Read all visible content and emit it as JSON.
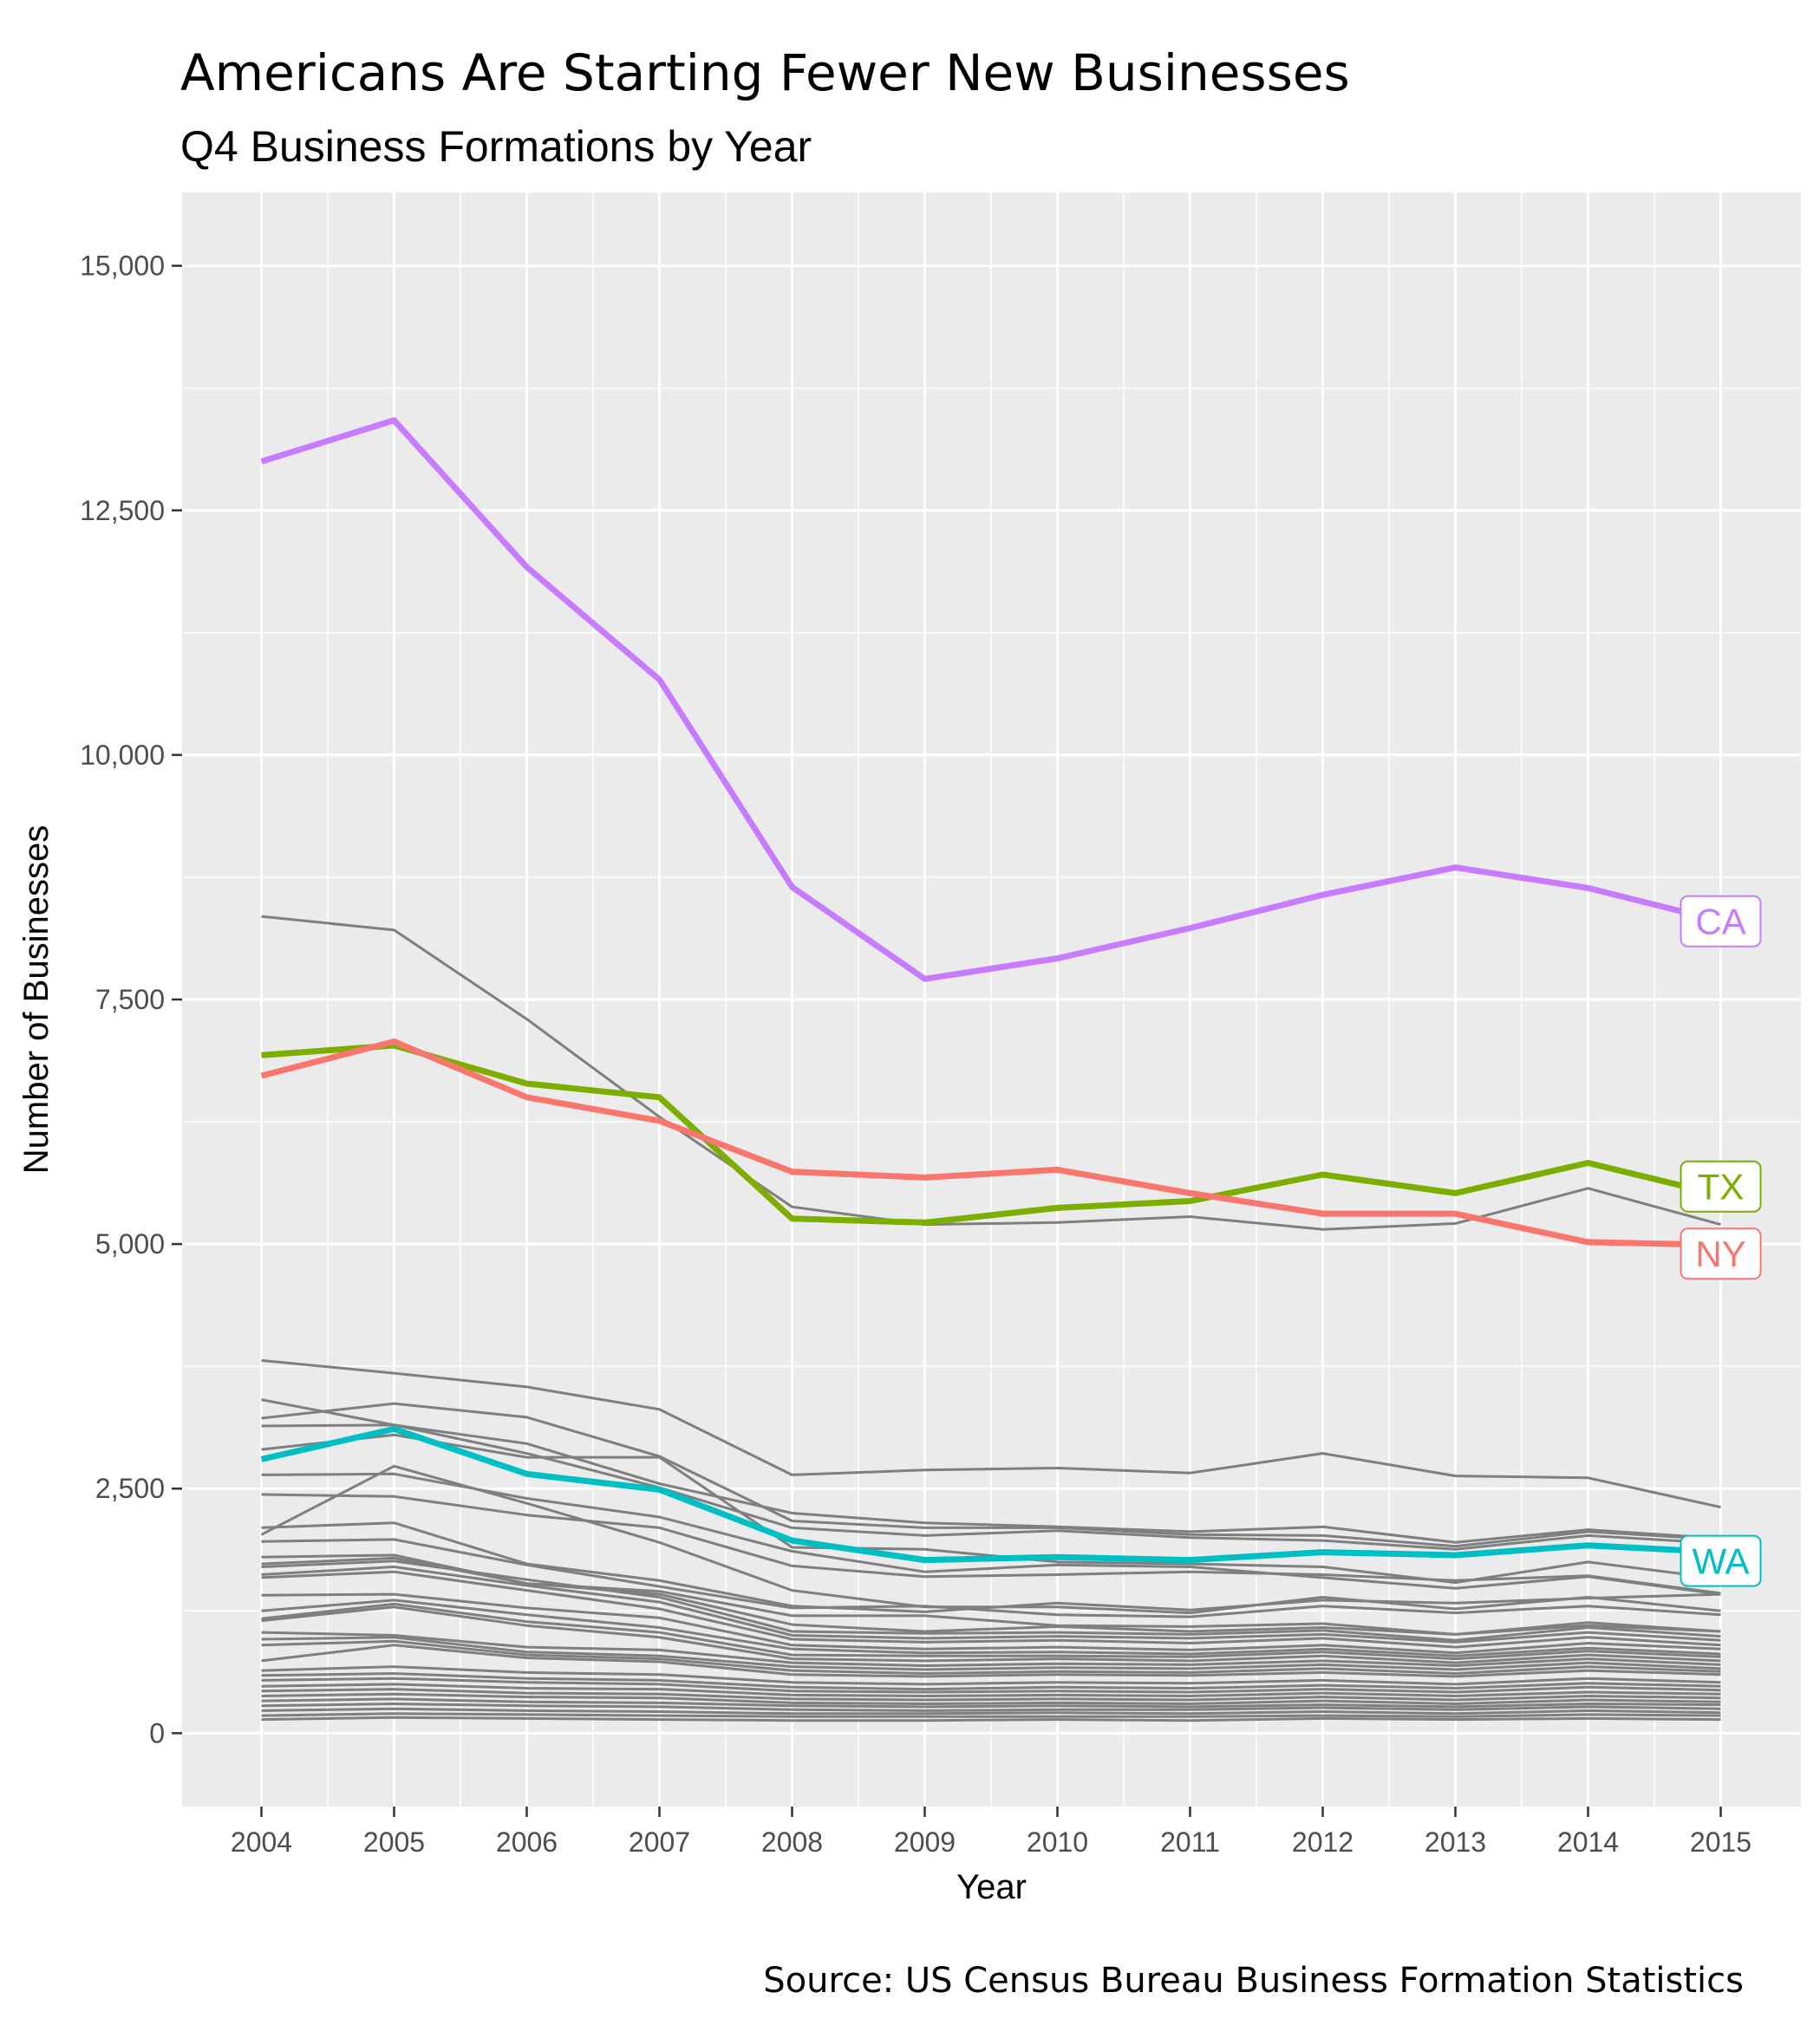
{
  "title": "Americans Are Starting Fewer New Businesses",
  "subtitle": "Q4 Business Formations by Year",
  "caption": "Source: US Census Bureau Business Formation Statistics",
  "colors": {
    "panel": "#ebebeb",
    "grid": "#ffffff",
    "other_states": "#7f7f7f",
    "CA": "#c77cff",
    "NY": "#f8766d",
    "TX": "#7cae00",
    "WA": "#00bfc4"
  },
  "chart_data": {
    "type": "line",
    "title": "Americans Are Starting Fewer New Businesses",
    "subtitle": "Q4 Business Formations by Year",
    "xlabel": "Year",
    "ylabel": "Number of Businesses",
    "x": [
      2004,
      2005,
      2006,
      2007,
      2008,
      2009,
      2010,
      2011,
      2012,
      2013,
      2014,
      2015
    ],
    "x_tick_labels": [
      "2004",
      "2005",
      "2006",
      "2007",
      "2008",
      "2009",
      "2010",
      "2011",
      "2012",
      "2013",
      "2014",
      "2015"
    ],
    "y_ticks": [
      0,
      2500,
      5000,
      7500,
      10000,
      12500,
      15000
    ],
    "y_tick_labels": [
      "0",
      "2,500",
      "5,000",
      "7,500",
      "10,000",
      "12,500",
      "15,000"
    ],
    "ylim": [
      -750,
      15750
    ],
    "grid": true,
    "highlighted_series": [
      {
        "name": "CA",
        "color": "#c77cff",
        "values": [
          13000,
          13420,
          11920,
          10770,
          8650,
          7710,
          7920,
          8230,
          8570,
          8850,
          8640,
          8300
        ]
      },
      {
        "name": "TX",
        "color": "#7cae00",
        "values": [
          6930,
          7030,
          6640,
          6500,
          5260,
          5220,
          5370,
          5440,
          5710,
          5520,
          5830,
          5500
        ]
      },
      {
        "name": "NY",
        "color": "#f8766d",
        "values": [
          6720,
          7070,
          6500,
          6260,
          5740,
          5680,
          5760,
          5520,
          5310,
          5310,
          5020,
          4990
        ]
      },
      {
        "name": "WA",
        "color": "#00bfc4",
        "values": [
          2800,
          3110,
          2650,
          2490,
          1970,
          1770,
          1800,
          1770,
          1850,
          1820,
          1920,
          1850
        ]
      }
    ],
    "other_series": [
      [
        8350,
        8210,
        7300,
        6300,
        5380,
        5200,
        5220,
        5280,
        5150,
        5210,
        5570,
        5200
      ],
      [
        3810,
        3680,
        3540,
        3310,
        2640,
        2690,
        2710,
        2660,
        2860,
        2630,
        2610,
        2310
      ],
      [
        3410,
        3150,
        2960,
        2550,
        2250,
        2150,
        2110,
        2060,
        2110,
        1950,
        2080,
        1990
      ],
      [
        3220,
        3370,
        3230,
        2830,
        2170,
        2100,
        2100,
        2030,
        2020,
        1910,
        2060,
        1980
      ],
      [
        3140,
        3150,
        2860,
        2510,
        2100,
        2020,
        2070,
        2000,
        1970,
        1880,
        2020,
        1940
      ],
      [
        2900,
        3050,
        2820,
        2820,
        1900,
        1880,
        1750,
        1730,
        1700,
        1540,
        1750,
        1580
      ],
      [
        2640,
        2650,
        2400,
        2210,
        1860,
        1650,
        1720,
        1700,
        1590,
        1480,
        1600,
        1420
      ],
      [
        2440,
        2420,
        2230,
        2100,
        1710,
        1600,
        1620,
        1650,
        1620,
        1560,
        1610,
        1430
      ],
      [
        2030,
        2730,
        2350,
        1950,
        1460,
        1290,
        1290,
        1230,
        1390,
        1270,
        1390,
        1250
      ],
      [
        2100,
        2150,
        1730,
        1560,
        1300,
        1240,
        1330,
        1260,
        1360,
        1330,
        1380,
        1420
      ],
      [
        1960,
        1980,
        1720,
        1500,
        1280,
        1300,
        1210,
        1190,
        1300,
        1230,
        1300,
        1210
      ],
      [
        1800,
        1820,
        1530,
        1450,
        1200,
        1200,
        1100,
        1090,
        1120,
        1010,
        1130,
        1040
      ],
      [
        1730,
        1790,
        1530,
        1420,
        1110,
        1040,
        1090,
        1040,
        1080,
        1010,
        1100,
        1040
      ],
      [
        1700,
        1760,
        1570,
        1390,
        1040,
        1020,
        1030,
        1010,
        1050,
        950,
        1080,
        990
      ],
      [
        1620,
        1700,
        1510,
        1340,
        1000,
        970,
        990,
        970,
        1010,
        930,
        1030,
        950
      ],
      [
        1590,
        1650,
        1460,
        1270,
        960,
        930,
        950,
        920,
        970,
        880,
        980,
        900
      ],
      [
        1410,
        1420,
        1280,
        1180,
        900,
        860,
        880,
        850,
        900,
        820,
        920,
        860
      ],
      [
        1250,
        1360,
        1210,
        1080,
        860,
        820,
        830,
        810,
        860,
        790,
        870,
        810
      ],
      [
        1170,
        1320,
        1140,
        1030,
        800,
        790,
        790,
        780,
        830,
        760,
        840,
        780
      ],
      [
        1150,
        1290,
        1100,
        980,
        760,
        740,
        760,
        740,
        790,
        720,
        800,
        740
      ],
      [
        1030,
        1000,
        880,
        850,
        720,
        690,
        710,
        700,
        740,
        690,
        760,
        700
      ],
      [
        960,
        980,
        830,
        790,
        680,
        650,
        670,
        660,
        700,
        650,
        720,
        660
      ],
      [
        900,
        940,
        800,
        760,
        640,
        610,
        630,
        620,
        660,
        610,
        680,
        630
      ],
      [
        740,
        900,
        770,
        730,
        600,
        580,
        600,
        590,
        620,
        580,
        640,
        600
      ],
      [
        640,
        680,
        620,
        600,
        520,
        500,
        520,
        510,
        540,
        500,
        560,
        520
      ],
      [
        590,
        610,
        560,
        540,
        470,
        450,
        470,
        460,
        490,
        460,
        510,
        480
      ],
      [
        540,
        560,
        520,
        500,
        430,
        420,
        430,
        420,
        450,
        420,
        470,
        440
      ],
      [
        480,
        500,
        460,
        450,
        390,
        380,
        390,
        380,
        410,
        380,
        420,
        400
      ],
      [
        430,
        450,
        410,
        400,
        350,
        340,
        350,
        340,
        370,
        340,
        380,
        360
      ],
      [
        380,
        400,
        370,
        360,
        310,
        300,
        310,
        300,
        330,
        300,
        340,
        320
      ],
      [
        330,
        350,
        320,
        310,
        280,
        270,
        280,
        270,
        290,
        270,
        300,
        290
      ],
      [
        280,
        300,
        280,
        270,
        240,
        230,
        240,
        240,
        260,
        240,
        270,
        250
      ],
      [
        230,
        250,
        230,
        220,
        200,
        200,
        210,
        200,
        220,
        200,
        230,
        210
      ],
      [
        180,
        200,
        190,
        180,
        170,
        170,
        170,
        170,
        180,
        170,
        190,
        180
      ],
      [
        140,
        160,
        150,
        140,
        130,
        130,
        140,
        130,
        150,
        140,
        150,
        140
      ]
    ]
  }
}
